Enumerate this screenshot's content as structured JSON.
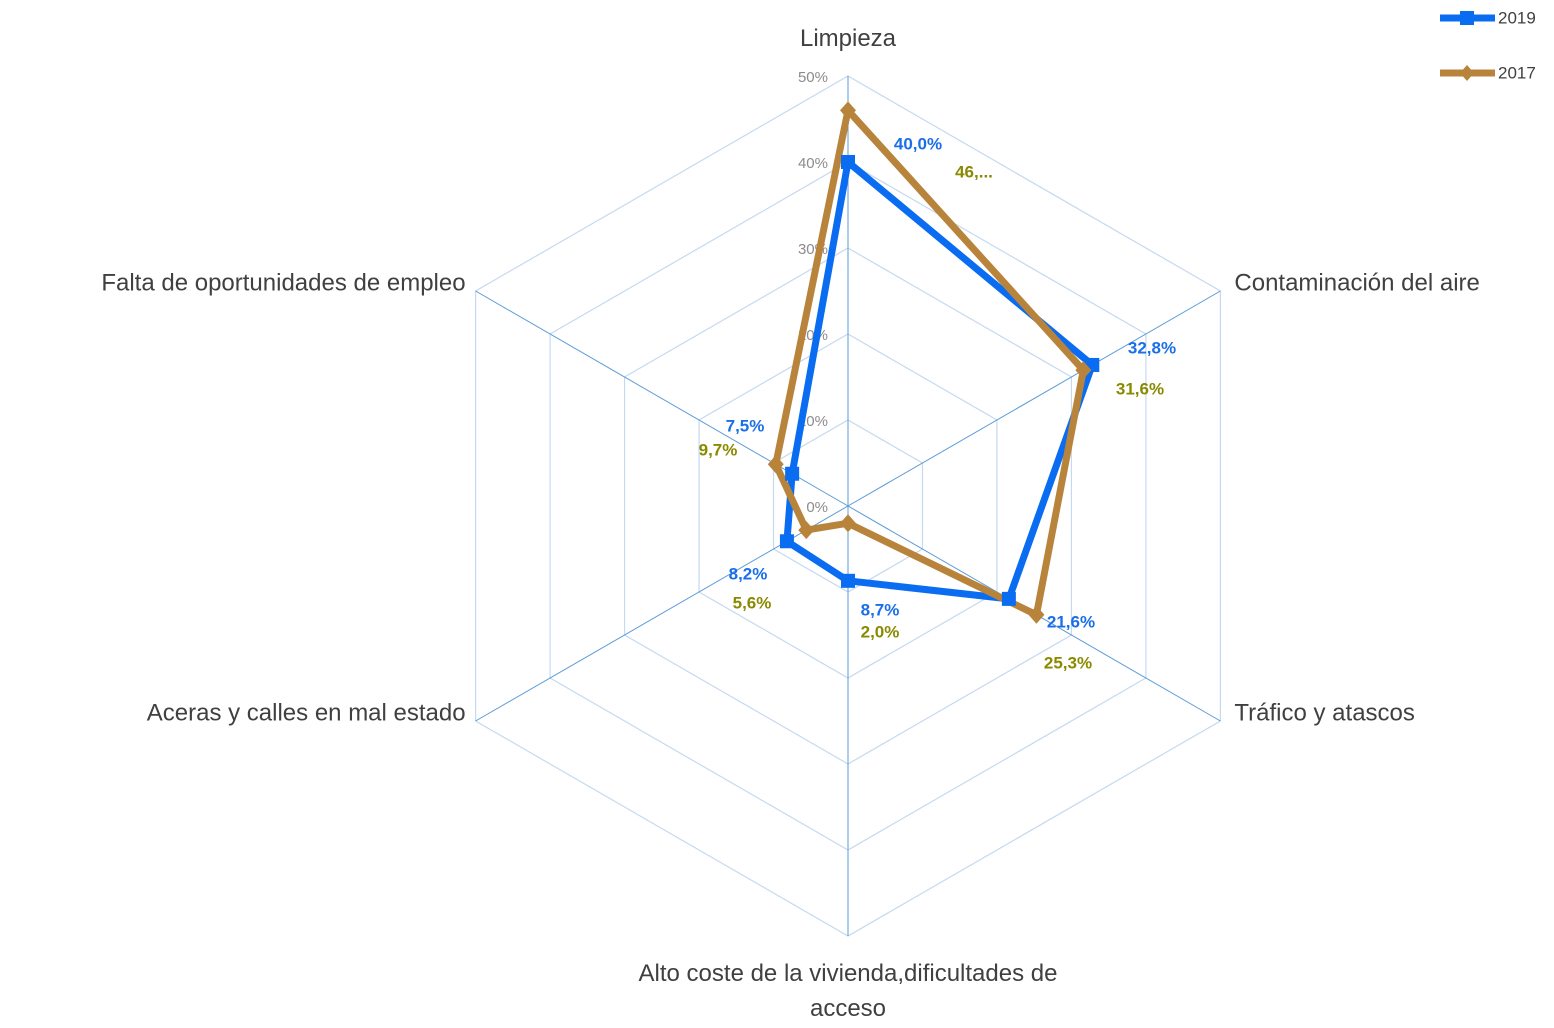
{
  "chart_data": {
    "type": "radar",
    "categories": [
      "Limpieza",
      "Contaminación del aire",
      "Tráfico y atascos",
      "Alto coste de la vivienda,dificultades de acceso",
      "Aceras y calles en mal estado",
      "Falta de oportunidades de empleo"
    ],
    "series": [
      {
        "name": "2019",
        "color": "#0a6cf0",
        "label_color": "#1a6fe8",
        "marker": "square",
        "values": [
          40.0,
          32.8,
          21.6,
          8.7,
          8.2,
          7.5
        ],
        "value_labels": [
          "40,0%",
          "32,8%",
          "21,6%",
          "8,7%",
          "8,2%",
          "7,5%"
        ]
      },
      {
        "name": "2017",
        "color": "#b8843c",
        "label_color": "#8a8a00",
        "marker": "diamond",
        "values": [
          46,
          31.6,
          25.3,
          2.0,
          5.6,
          9.7
        ],
        "value_labels": [
          "46,...",
          "31,6%",
          "25,3%",
          "2,0%",
          "5,6%",
          "9,7%"
        ]
      }
    ],
    "ylim": [
      0,
      50
    ],
    "yticks": [
      {
        "value": 0,
        "label": "0%"
      },
      {
        "value": 10,
        "label": "10%"
      },
      {
        "value": 20,
        "label": "20%"
      },
      {
        "value": 30,
        "label": "30%"
      },
      {
        "value": 40,
        "label": "40%"
      },
      {
        "value": 50,
        "label": "50%"
      }
    ],
    "grid": true,
    "legend": "top-right"
  }
}
